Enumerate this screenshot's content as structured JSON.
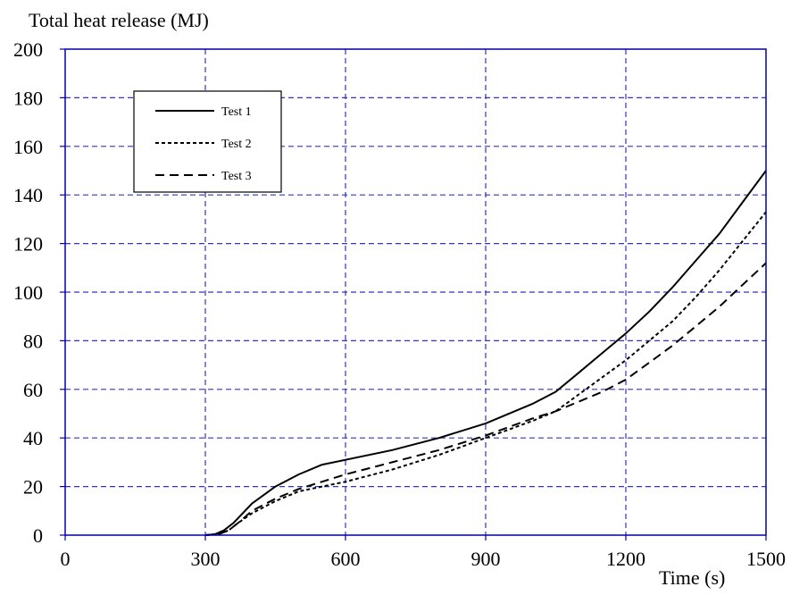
{
  "chart_data": {
    "type": "line",
    "title": "",
    "ylabel": "Total heat release (MJ)",
    "xlabel": "Time (s)",
    "xlim": [
      0,
      1500
    ],
    "ylim": [
      0,
      200
    ],
    "x_ticks": [
      0,
      300,
      600,
      900,
      1200,
      1500
    ],
    "y_ticks": [
      0,
      20,
      40,
      60,
      80,
      100,
      120,
      140,
      160,
      180,
      200
    ],
    "grid": true,
    "grid_color": "#3333cc",
    "axis_color": "#0000aa",
    "legend_position": "top-left",
    "series": [
      {
        "name": "Test 1",
        "dash": "solid",
        "x": [
          300,
          320,
          340,
          360,
          380,
          400,
          450,
          500,
          550,
          600,
          700,
          800,
          900,
          1000,
          1050,
          1100,
          1150,
          1200,
          1250,
          1300,
          1350,
          1400,
          1450,
          1500
        ],
        "y": [
          0,
          0.3,
          2,
          5,
          9,
          13,
          20,
          25,
          29,
          31,
          35,
          40,
          46,
          54,
          59,
          67,
          75,
          83,
          92,
          102,
          113,
          124,
          137,
          150
        ]
      },
      {
        "name": "Test 2",
        "dash": "dotted",
        "x": [
          300,
          330,
          350,
          370,
          400,
          450,
          500,
          550,
          600,
          700,
          800,
          900,
          1000,
          1050,
          1100,
          1150,
          1200,
          1250,
          1300,
          1350,
          1400,
          1450,
          1500
        ],
        "y": [
          0,
          0.5,
          2,
          5,
          9,
          14,
          18,
          20,
          22,
          27,
          33,
          40,
          47,
          51,
          58,
          65,
          72,
          80,
          88,
          98,
          109,
          121,
          133
        ]
      },
      {
        "name": "Test 3",
        "dash": "dashed",
        "x": [
          300,
          330,
          350,
          370,
          400,
          450,
          500,
          550,
          600,
          700,
          800,
          900,
          1000,
          1050,
          1100,
          1150,
          1200,
          1250,
          1300,
          1350,
          1400,
          1450,
          1500
        ],
        "y": [
          0,
          0.5,
          2,
          5,
          10,
          15,
          19,
          22,
          25,
          30,
          35,
          41,
          48,
          51,
          55,
          59,
          64,
          71,
          78,
          86,
          94,
          103,
          112
        ]
      }
    ]
  }
}
